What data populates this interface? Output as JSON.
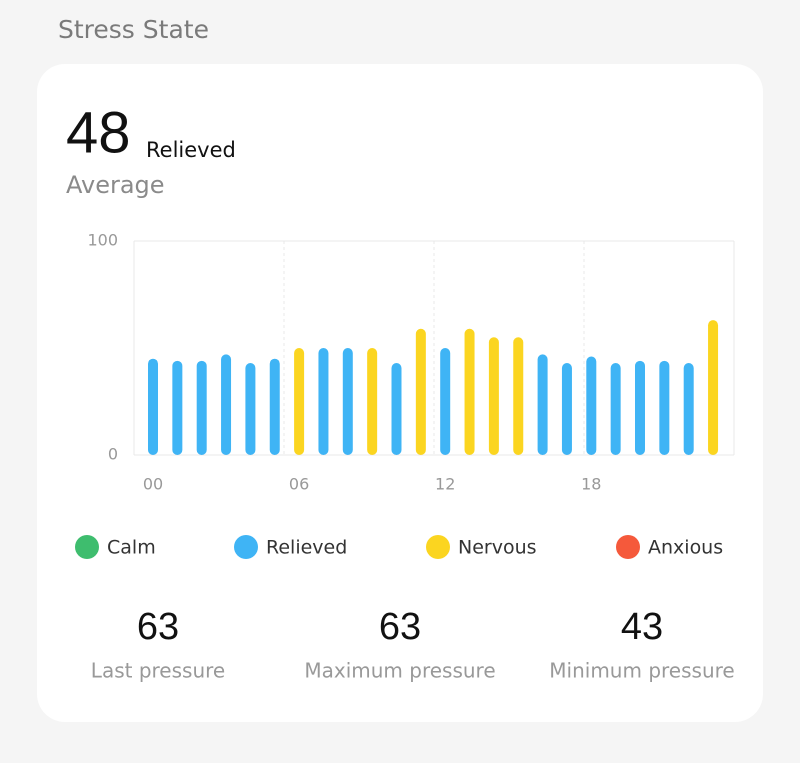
{
  "header": {
    "title": "Stress State"
  },
  "summary": {
    "value": 48,
    "state": "Relieved",
    "label": "Average"
  },
  "chart_data": {
    "type": "bar",
    "categories": [
      "00",
      null,
      null,
      null,
      null,
      null,
      "06",
      null,
      null,
      null,
      null,
      null,
      "12",
      null,
      null,
      null,
      null,
      null,
      "18",
      null,
      null,
      null,
      null,
      null
    ],
    "series": [
      {
        "name": "Calm",
        "color": "#3ebd6e",
        "values": [
          null,
          null,
          null,
          null,
          null,
          null,
          null,
          null,
          null,
          null,
          null,
          null,
          null,
          null,
          null,
          null,
          null,
          null,
          null,
          null,
          null,
          null,
          null,
          null
        ]
      },
      {
        "name": "Relieved",
        "color": "#3fb4f5",
        "values": [
          45,
          44,
          44,
          47,
          43,
          45,
          null,
          50,
          50,
          null,
          43,
          null,
          50,
          null,
          null,
          null,
          47,
          43,
          46,
          43,
          44,
          44,
          43,
          null
        ]
      },
      {
        "name": "Nervous",
        "color": "#fbd520",
        "values": [
          null,
          null,
          null,
          null,
          null,
          null,
          50,
          null,
          null,
          50,
          null,
          59,
          null,
          59,
          55,
          55,
          null,
          null,
          null,
          null,
          null,
          null,
          null,
          63
        ]
      },
      {
        "name": "Anxious",
        "color": "#f5593b",
        "values": [
          null,
          null,
          null,
          null,
          null,
          null,
          null,
          null,
          null,
          null,
          null,
          null,
          null,
          null,
          null,
          null,
          null,
          null,
          null,
          null,
          null,
          null,
          null,
          null
        ]
      }
    ],
    "ylim": [
      0,
      100
    ],
    "yticks": [
      0,
      100
    ],
    "grid": true
  },
  "stats": [
    {
      "value": 63,
      "label": "Last pressure"
    },
    {
      "value": 63,
      "label": "Maximum pressure"
    },
    {
      "value": 43,
      "label": "Minimum pressure"
    }
  ]
}
